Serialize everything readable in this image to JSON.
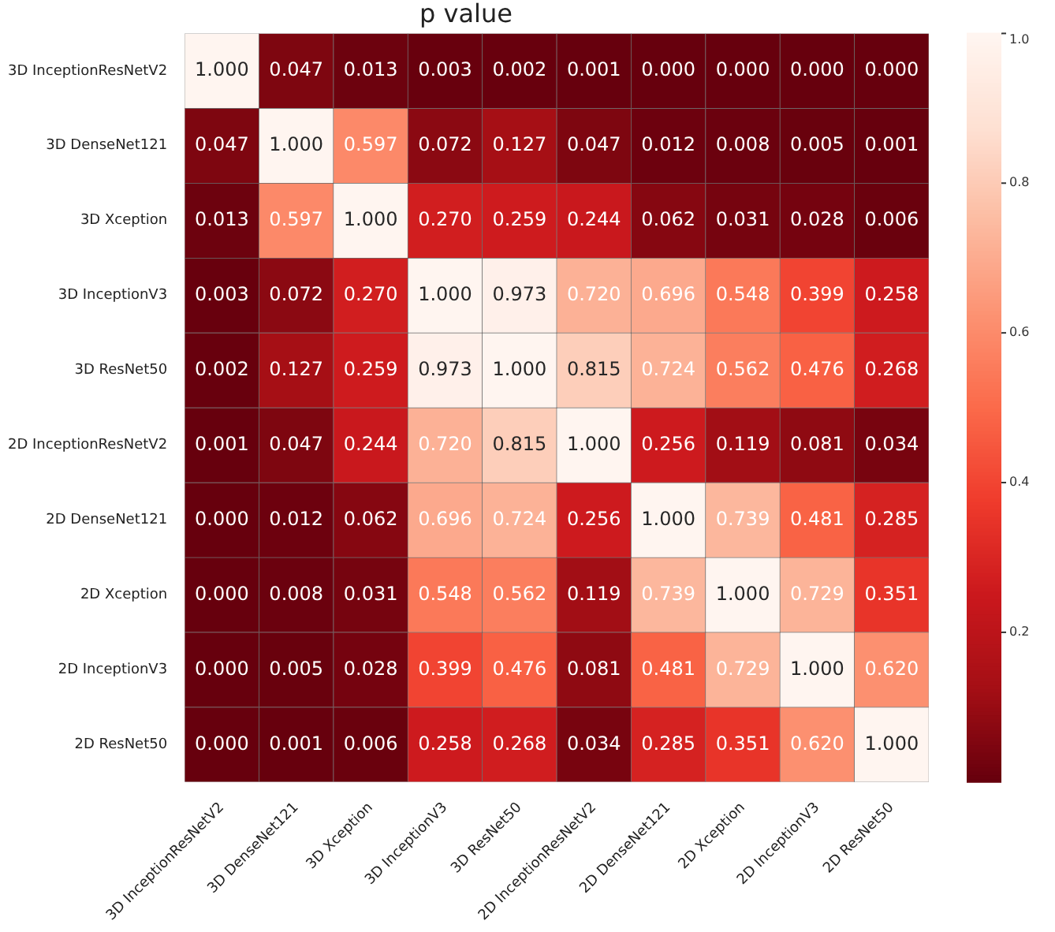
{
  "chart_data": {
    "type": "heatmap",
    "title": "p value",
    "categories": [
      "3D InceptionResNetV2",
      "3D DenseNet121",
      "3D Xception",
      "3D InceptionV3",
      "3D ResNet50",
      "2D InceptionResNetV2",
      "2D DenseNet121",
      "2D Xception",
      "2D InceptionV3",
      "2D ResNet50"
    ],
    "y_categories": [
      "3D InceptionResNetV2",
      "3D DenseNet121",
      "3D Xception",
      "3D InceptionV3",
      "3D ResNet50",
      "2D InceptionResNetV2",
      "2D DenseNet121",
      "2D Xception",
      "2D InceptionV3",
      "2D ResNet50"
    ],
    "cells": [
      [
        1,
        0.047,
        0.013,
        0.003,
        0.002,
        0.001,
        0,
        0,
        0,
        0
      ],
      [
        0.047,
        1,
        0.597,
        0.072,
        0.127,
        0.047,
        0.012,
        0.008,
        0.005,
        0.001
      ],
      [
        0.013,
        0.597,
        1,
        0.27,
        0.259,
        0.244,
        0.062,
        0.031,
        0.028,
        0.006
      ],
      [
        0.003,
        0.072,
        0.27,
        1,
        0.973,
        0.72,
        0.696,
        0.548,
        0.399,
        0.258
      ],
      [
        0.002,
        0.127,
        0.259,
        0.973,
        1,
        0.815,
        0.724,
        0.562,
        0.476,
        0.268
      ],
      [
        0.001,
        0.047,
        0.244,
        0.72,
        0.815,
        1,
        0.256,
        0.119,
        0.081,
        0.034
      ],
      [
        0,
        0.012,
        0.062,
        0.696,
        0.724,
        0.256,
        1,
        0.739,
        0.481,
        0.285
      ],
      [
        0,
        0.008,
        0.031,
        0.548,
        0.562,
        0.119,
        0.739,
        1,
        0.729,
        0.351
      ],
      [
        0,
        0.005,
        0.028,
        0.399,
        0.476,
        0.081,
        0.481,
        0.729,
        1,
        0.62
      ],
      [
        0,
        0.001,
        0.006,
        0.258,
        0.268,
        0.034,
        0.285,
        0.351,
        0.62,
        1
      ]
    ],
    "cell_labels": [
      [
        "1.000",
        "0.047",
        "0.013",
        "0.003",
        "0.002",
        "0.001",
        "0.000",
        "0.000",
        "0.000",
        "0.000"
      ],
      [
        "0.047",
        "1.000",
        "0.597",
        "0.072",
        "0.127",
        "0.047",
        "0.012",
        "0.008",
        "0.005",
        "0.001"
      ],
      [
        "0.013",
        "0.597",
        "1.000",
        "0.270",
        "0.259",
        "0.244",
        "0.062",
        "0.031",
        "0.028",
        "0.006"
      ],
      [
        "0.003",
        "0.072",
        "0.270",
        "1.000",
        "0.973",
        "0.720",
        "0.696",
        "0.548",
        "0.399",
        "0.258"
      ],
      [
        "0.002",
        "0.127",
        "0.259",
        "0.973",
        "1.000",
        "0.815",
        "0.724",
        "0.562",
        "0.476",
        "0.268"
      ],
      [
        "0.001",
        "0.047",
        "0.244",
        "0.720",
        "0.815",
        "1.000",
        "0.256",
        "0.119",
        "0.081",
        "0.034"
      ],
      [
        "0.000",
        "0.012",
        "0.062",
        "0.696",
        "0.724",
        "0.256",
        "1.000",
        "0.739",
        "0.481",
        "0.285"
      ],
      [
        "0.000",
        "0.008",
        "0.031",
        "0.548",
        "0.562",
        "0.119",
        "0.739",
        "1.000",
        "0.729",
        "0.351"
      ],
      [
        "0.000",
        "0.005",
        "0.028",
        "0.399",
        "0.476",
        "0.081",
        "0.481",
        "0.729",
        "1.000",
        "0.620"
      ],
      [
        "0.000",
        "0.001",
        "0.006",
        "0.258",
        "0.268",
        "0.034",
        "0.285",
        "0.351",
        "0.620",
        "1.000"
      ]
    ],
    "clim": [
      0,
      1
    ],
    "cticks": [
      0.2,
      0.4,
      0.6,
      0.8,
      {
        "value": 1,
        "label": "1.0"
      }
    ]
  }
}
